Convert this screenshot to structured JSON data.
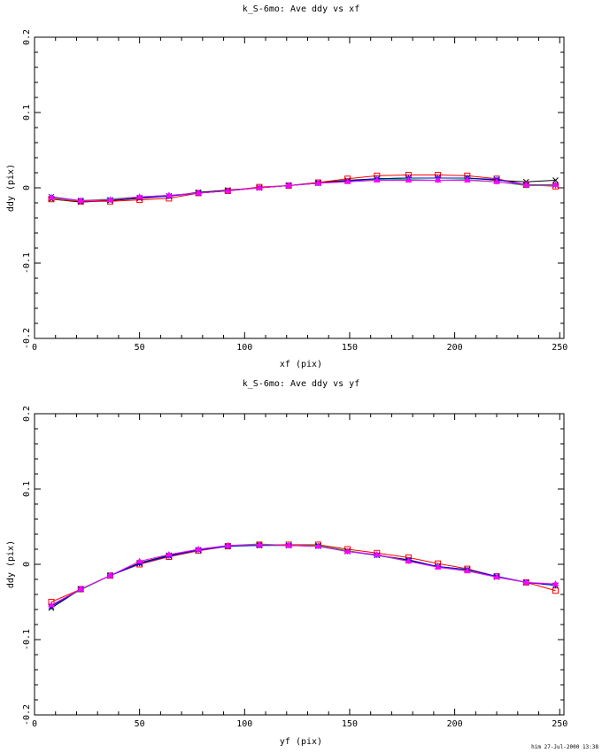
{
  "footer": "him 27-Jul-2000 13:38",
  "series_colors": {
    "black": "#000000",
    "red": "#ff0000",
    "green": "#00cc00",
    "blue": "#0000ff",
    "magenta": "#ff00ff"
  },
  "chart_data": [
    {
      "type": "line",
      "title": "k_S-6mo: Ave ddy vs xf",
      "xlabel": "xf (pix)",
      "ylabel": "ddy (pix)",
      "xlim": [
        0,
        252
      ],
      "ylim": [
        -0.2,
        0.2
      ],
      "xticks": [
        "0",
        "50",
        "100",
        "150",
        "200",
        "250"
      ],
      "yticks": [
        "-0.2",
        "-0.1",
        "0",
        "0.1",
        "0.2"
      ],
      "x": [
        8,
        22,
        36,
        50,
        64,
        78,
        92,
        107,
        121,
        135,
        149,
        163,
        178,
        192,
        206,
        220,
        234,
        248
      ],
      "series": [
        {
          "name": "black",
          "marker": "x",
          "values": [
            -0.015,
            -0.019,
            -0.017,
            -0.014,
            -0.011,
            -0.006,
            -0.003,
            0,
            0.003,
            0.007,
            0.01,
            0.012,
            0.013,
            0.013,
            0.013,
            0.01,
            0.008,
            0.01
          ]
        },
        {
          "name": "red",
          "marker": "square",
          "values": [
            -0.015,
            -0.018,
            -0.018,
            -0.016,
            -0.014,
            -0.007,
            -0.004,
            0.001,
            0.003,
            0.007,
            0.012,
            0.016,
            0.017,
            0.017,
            0.016,
            0.012,
            0.004,
            0.002
          ]
        },
        {
          "name": "green",
          "marker": "plus",
          "values": [
            -0.014,
            -0.017,
            -0.015,
            -0.012,
            -0.01,
            -0.007,
            -0.004,
            0,
            0.003,
            0.006,
            0.009,
            0.011,
            0.011,
            0.01,
            0.011,
            0.008,
            0.003,
            0.003
          ]
        },
        {
          "name": "blue",
          "marker": "star",
          "values": [
            -0.012,
            -0.017,
            -0.016,
            -0.013,
            -0.011,
            -0.007,
            -0.004,
            0,
            0.003,
            0.006,
            0.009,
            0.012,
            0.013,
            0.013,
            0.013,
            0.011,
            0.004,
            0.004
          ]
        },
        {
          "name": "magenta",
          "marker": "triangle",
          "values": [
            -0.013,
            -0.017,
            -0.016,
            -0.012,
            -0.01,
            -0.007,
            -0.004,
            0,
            0.003,
            0.006,
            0.008,
            0.01,
            0.01,
            0.01,
            0.01,
            0.008,
            0.004,
            0.004
          ]
        }
      ]
    },
    {
      "type": "line",
      "title": "k_S-6mo: Ave ddy vs yf",
      "xlabel": "yf (pix)",
      "ylabel": "ddy (pix)",
      "xlim": [
        0,
        252
      ],
      "ylim": [
        -0.2,
        0.2
      ],
      "xticks": [
        "0",
        "50",
        "100",
        "150",
        "200",
        "250"
      ],
      "yticks": [
        "-0.2",
        "-0.1",
        "0",
        "0.1",
        "0.2"
      ],
      "x": [
        8,
        22,
        36,
        50,
        64,
        78,
        92,
        107,
        121,
        135,
        149,
        163,
        178,
        192,
        206,
        220,
        234,
        248
      ],
      "series": [
        {
          "name": "black",
          "marker": "x",
          "values": [
            -0.058,
            -0.033,
            -0.015,
            0.002,
            0.012,
            0.019,
            0.024,
            0.026,
            0.025,
            0.025,
            0.018,
            0.012,
            0.006,
            -0.003,
            -0.007,
            -0.017,
            -0.024,
            -0.028
          ]
        },
        {
          "name": "red",
          "marker": "square",
          "values": [
            -0.05,
            -0.033,
            -0.015,
            0,
            0.01,
            0.018,
            0.024,
            0.026,
            0.026,
            0.026,
            0.02,
            0.015,
            0.009,
            0.001,
            -0.006,
            -0.016,
            -0.024,
            -0.035
          ]
        },
        {
          "name": "green",
          "marker": "plus",
          "values": [
            -0.055,
            -0.034,
            -0.015,
            0.001,
            0.011,
            0.019,
            0.025,
            0.027,
            0.025,
            0.025,
            0.018,
            0.012,
            0.004,
            -0.003,
            -0.008,
            -0.016,
            -0.024,
            -0.027
          ]
        },
        {
          "name": "blue",
          "marker": "star",
          "values": [
            -0.056,
            -0.033,
            -0.015,
            0.001,
            0.011,
            0.019,
            0.024,
            0.025,
            0.025,
            0.024,
            0.017,
            0.012,
            0.005,
            -0.003,
            -0.007,
            -0.016,
            -0.024,
            -0.028
          ]
        },
        {
          "name": "magenta",
          "marker": "triangle",
          "values": [
            -0.054,
            -0.033,
            -0.015,
            0.004,
            0.013,
            0.02,
            0.025,
            0.026,
            0.025,
            0.024,
            0.017,
            0.013,
            0.004,
            -0.004,
            -0.009,
            -0.017,
            -0.024,
            -0.026
          ]
        }
      ]
    }
  ]
}
